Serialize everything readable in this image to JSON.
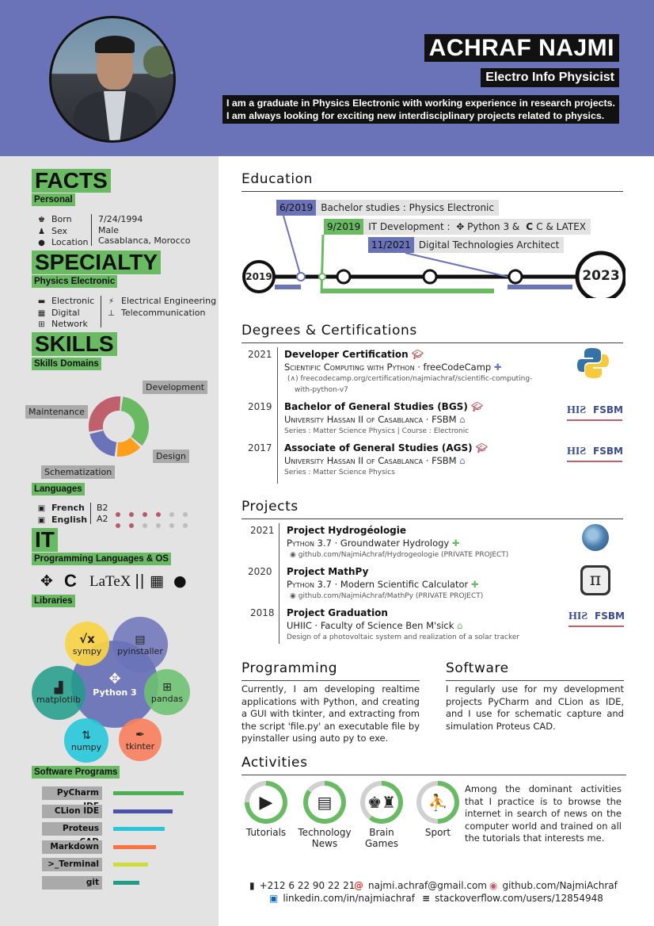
{
  "header": {
    "name": "ACHRAF NAJMI",
    "subtitle": "Electro Info Physicist",
    "bio_line1": "I am a graduate in Physics Electronic with working experience in research projects.",
    "bio_line2": "I am always looking for exciting new interdisciplinary projects related to physics."
  },
  "sidebar": {
    "facts_title": "FACTS",
    "personal_title": "Personal",
    "personal": [
      {
        "label": "Born",
        "value": "7/24/1994",
        "icon": "baby-icon"
      },
      {
        "label": "Sex",
        "value": "Male",
        "icon": "male-icon"
      },
      {
        "label": "Location",
        "value": "Casablanca, Morocco",
        "icon": "location-pin-icon"
      }
    ],
    "specialty_title": "SPECIALTY",
    "specialty_sub": "Physics Electronic",
    "specialty_left": [
      "Electronic",
      "Digital",
      "Network"
    ],
    "specialty_right": [
      "Electrical Engineering",
      "Telecommunication"
    ],
    "skills_title": "SKILLS",
    "skills_domains": "Skills Domains",
    "donut": {
      "labels": [
        "Development",
        "Design",
        "Schematization",
        "Maintenance"
      ],
      "values": [
        35,
        15,
        20,
        30
      ],
      "colors": [
        "#6aba64",
        "#ff9e1b",
        "#6b73b8",
        "#c0606d"
      ]
    },
    "languages_title": "Languages",
    "languages": [
      {
        "name": "French",
        "level": "B2",
        "filled": 4,
        "total": 6
      },
      {
        "name": "English",
        "level": "A2",
        "filled": 2,
        "total": 6
      }
    ],
    "it_title": "IT",
    "prog_title": "Programming Languages & OS",
    "libraries_title": "Libraries",
    "libraries": {
      "center": "Python 3",
      "sympy": "sympy",
      "pyinstaller": "pyinstaller",
      "pandas": "pandas",
      "tkinter": "tkinter",
      "numpy": "numpy",
      "matplotlib": "matplotlib"
    },
    "software_title": "Software Programs",
    "software": [
      {
        "name": "PyCharm IDE",
        "level": 0.89,
        "color": "#4caf50"
      },
      {
        "name": "CLion IDE",
        "level": 0.75,
        "color": "#4a53a8"
      },
      {
        "name": "Proteus CAD",
        "level": 0.65,
        "color": "#26c6da"
      },
      {
        "name": "Markdown",
        "level": 0.54,
        "color": "#ff7043"
      },
      {
        "name": ">_Terminal",
        "level": 0.44,
        "color": "#cddc39"
      },
      {
        "name": "git",
        "level": 0.33,
        "color": "#1e9c88"
      }
    ]
  },
  "education": {
    "title": "Education",
    "start_year": "2019",
    "end_year": "2023",
    "items": [
      {
        "date": "6/2019",
        "label": "Bachelor studies : Physics Electronic",
        "color": "#6b73b8"
      },
      {
        "date": "9/2019",
        "label": "IT Development :",
        "extra": "Python 3 &",
        "extra2": "C & LATEX",
        "color": "#6aba64"
      },
      {
        "date": "11/2021",
        "label": "Digital Technologies Architect",
        "color": "#6b73b8"
      }
    ]
  },
  "degrees": {
    "title": "Degrees & Certifications",
    "items": [
      {
        "year": "2021",
        "title": "Developer Certification",
        "sub": "Scientific Computing with Python",
        "org": "freeCodeCamp",
        "note1": "freecodecamp.org/certification/najmiachraf/scientific-computing-",
        "note2": "with-python-v7"
      },
      {
        "year": "2019",
        "title": "Bachelor of General Studies (BGS)",
        "sub": "University Hassan II of Casablanca",
        "org": "FSBM",
        "note1": "Series : Matter Science Physics | Course : Electronic"
      },
      {
        "year": "2017",
        "title": "Associate of General Studies (AGS)",
        "sub": "University Hassan II of Casablanca",
        "org": "FSBM",
        "note1": "Series : Matter Science Physics"
      }
    ],
    "logo_text": "FSBM"
  },
  "projects": {
    "title": "Projects",
    "items": [
      {
        "year": "2021",
        "title": "Project Hydrogéologie",
        "sub": "Python 3.7",
        "desc": "Groundwater Hydrology",
        "note": "github.com/NajmiAchraf/Hydrogeologie (PRIVATE PROJECT)"
      },
      {
        "year": "2020",
        "title": "Project MathPy",
        "sub": "Python 3.7",
        "desc": "Modern Scientific Calculator",
        "note": "github.com/NajmiAchraf/MathPy (PRIVATE PROJECT)"
      },
      {
        "year": "2018",
        "title": "Project Graduation",
        "sub": "UHIIC",
        "desc": "Faculty of Science Ben M'sick",
        "note": "Design of a photovoltaic system and realization of a solar tracker"
      }
    ]
  },
  "programming": {
    "title": "Programming",
    "text": "Currently, I am developing realtime applications with Python, and creating a GUI with tkinter, and extracting from the script 'file.py' an executable file by pyinstaller using auto py to exe."
  },
  "software_section": {
    "title": "Software",
    "text": "I regularly use for my development projects PyCharm and CLion as IDE, and I use for schematic capture and simulation Proteus CAD."
  },
  "activities": {
    "title": "Activities",
    "items": [
      {
        "label1": "Tutorials",
        "label2": "",
        "level": 0.75
      },
      {
        "label1": "Technology",
        "label2": "News",
        "level": 0.85
      },
      {
        "label1": "Brain",
        "label2": "Games",
        "level": 0.6
      },
      {
        "label1": "Sport",
        "label2": "",
        "level": 0.5
      }
    ],
    "text": "Among the dominant activities that I practice is to browse the internet in search of news on the computer world and trained on all the tutorials that interests me."
  },
  "contact": {
    "phone": "+212 6 22 90 22 21",
    "email": "najmi.achraf@gmail.com",
    "github": "github.com/NajmiAchraf",
    "linkedin": "linkedin.com/in/najmiachraf",
    "stackoverflow": "stackoverflow.com/users/12854948"
  }
}
